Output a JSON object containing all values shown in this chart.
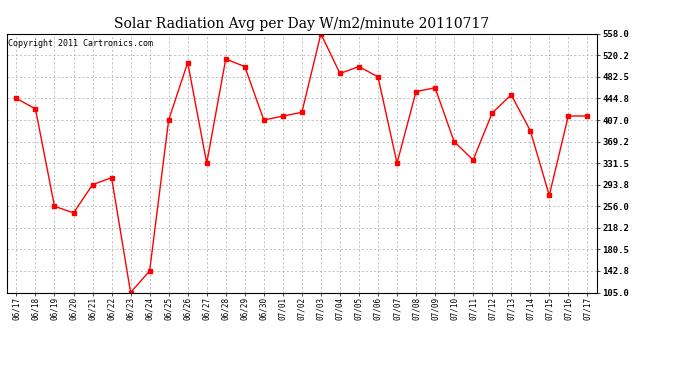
{
  "title": "Solar Radiation Avg per Day W/m2/minute 20110717",
  "copyright_text": "Copyright 2011 Cartronics.com",
  "x_labels": [
    "06/17",
    "06/18",
    "06/19",
    "06/20",
    "06/21",
    "06/22",
    "06/23",
    "06/24",
    "06/25",
    "06/26",
    "06/27",
    "06/28",
    "06/29",
    "06/30",
    "07/01",
    "07/02",
    "07/03",
    "07/04",
    "07/05",
    "07/06",
    "07/07",
    "07/08",
    "07/09",
    "07/10",
    "07/11",
    "07/12",
    "07/13",
    "07/14",
    "07/15",
    "07/16",
    "07/17"
  ],
  "y_values": [
    444.8,
    426.4,
    256.0,
    244.3,
    293.8,
    306.1,
    105.0,
    142.8,
    407.0,
    507.5,
    331.5,
    513.8,
    500.5,
    407.0,
    413.8,
    420.5,
    558.0,
    488.5,
    500.5,
    482.5,
    331.5,
    456.8,
    463.5,
    369.2,
    337.0,
    419.3,
    451.2,
    388.5,
    275.0,
    414.0,
    414.0
  ],
  "y_ticks": [
    105.0,
    142.8,
    180.5,
    218.2,
    256.0,
    293.8,
    331.5,
    369.2,
    407.0,
    444.8,
    482.5,
    520.2,
    558.0
  ],
  "y_min": 105.0,
  "y_max": 558.0,
  "line_color": "red",
  "marker": "s",
  "marker_size": 2.5,
  "bg_color": "#ffffff",
  "grid_color": "#aaaaaa",
  "title_fontsize": 10,
  "copyright_fontsize": 6.0
}
